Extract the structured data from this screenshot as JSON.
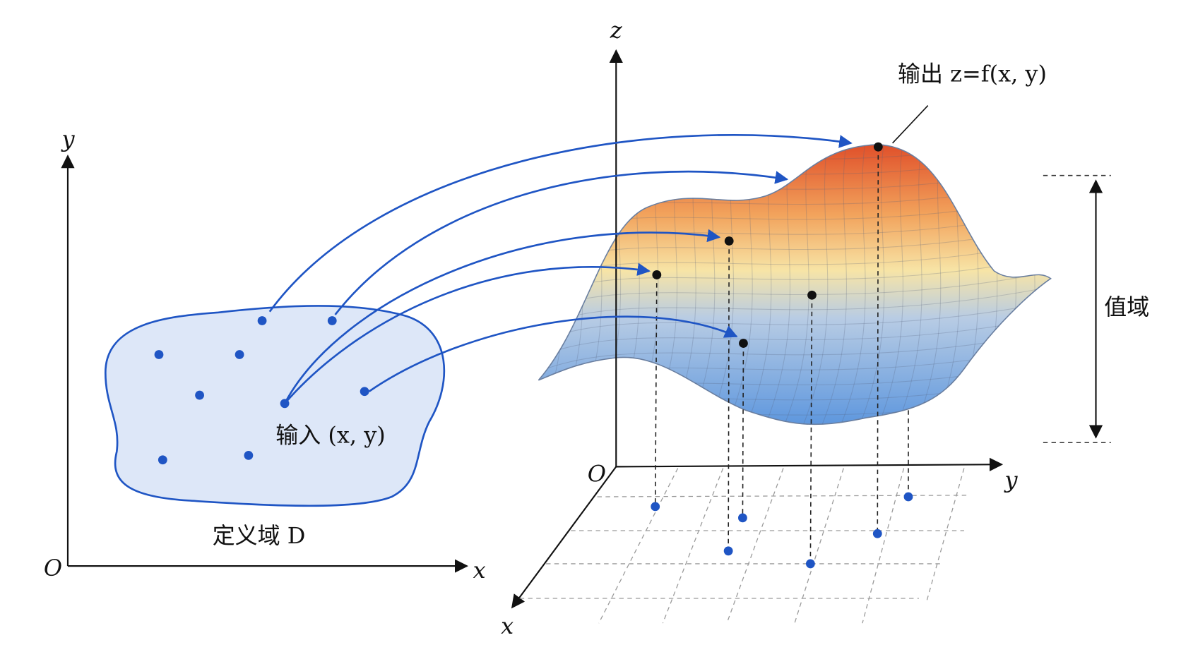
{
  "left_plot": {
    "axes": {
      "x": "x",
      "y": "y",
      "origin": "O"
    },
    "input_label": "输入 (x, y)",
    "region_label": "定义域 D"
  },
  "right_plot": {
    "axes": {
      "x": "x",
      "y": "y",
      "z": "z",
      "origin": "O"
    },
    "output_label": "输出 z=f(x, y)",
    "range_label": "值域"
  }
}
